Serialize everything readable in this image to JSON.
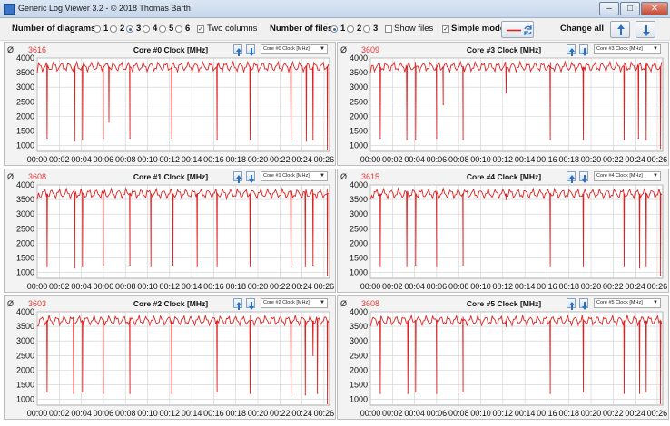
{
  "window": {
    "title": "Generic Log Viewer 3.2 - © 2018 Thomas Barth",
    "icons": [
      "app-icon",
      "minimize-icon",
      "maximize-icon",
      "close-icon"
    ]
  },
  "toolbar": {
    "num_diagrams_label": "Number of diagrams",
    "diagram_options": [
      "1",
      "2",
      "3",
      "4",
      "5",
      "6"
    ],
    "diagram_selected": "3",
    "two_columns_label": "Two columns",
    "two_columns_checked": true,
    "num_files_label": "Number of files",
    "file_options": [
      "1",
      "2",
      "3"
    ],
    "file_selected": "1",
    "show_files_label": "Show files",
    "show_files_checked": false,
    "simple_mode_label": "Simple mode",
    "simple_mode_checked": true,
    "change_all_label": "Change all",
    "line_color": "#e02020",
    "icons": [
      "refresh-icon",
      "arrow-up-icon",
      "arrow-down-icon"
    ]
  },
  "panels": [
    {
      "avg_symbol": "Ø",
      "avg": "3616",
      "title": "Core #0 Clock [MHz]",
      "select": "Core #0 Clock [MHz]"
    },
    {
      "avg_symbol": "Ø",
      "avg": "3609",
      "title": "Core #3 Clock [MHz]",
      "select": "Core #3 Clock [MHz]"
    },
    {
      "avg_symbol": "Ø",
      "avg": "3608",
      "title": "Core #1 Clock [MHz]",
      "select": "Core #1 Clock [MHz]"
    },
    {
      "avg_symbol": "Ø",
      "avg": "3615",
      "title": "Core #4 Clock [MHz]",
      "select": "Core #4 Clock [MHz]"
    },
    {
      "avg_symbol": "Ø",
      "avg": "3603",
      "title": "Core #2 Clock [MHz]",
      "select": "Core #2 Clock [MHz]"
    },
    {
      "avg_symbol": "Ø",
      "avg": "3608",
      "title": "Core #5 Clock [MHz]",
      "select": "Core #5 Clock [MHz]"
    }
  ],
  "chart_data": {
    "type": "line",
    "ylim": [
      800,
      4000
    ],
    "y_ticks": [
      "4000",
      "3500",
      "3000",
      "2500",
      "2000",
      "1500",
      "1000"
    ],
    "x_ticks": [
      "00:00",
      "00:02",
      "00:04",
      "00:06",
      "00:08",
      "00:10",
      "00:12",
      "00:14",
      "00:16",
      "00:18",
      "00:20",
      "00:22",
      "00:24",
      "00:26"
    ],
    "x_range_minutes": [
      0,
      26.5
    ],
    "baseline_mhz": 3700,
    "series_color": "#e02020",
    "series": [
      {
        "dips": [
          [
            0.9,
            1250
          ],
          [
            3.4,
            1150
          ],
          [
            4.1,
            1200
          ],
          [
            6.0,
            1250
          ],
          [
            6.5,
            1800
          ],
          [
            8.4,
            1250
          ],
          [
            12.2,
            1250
          ],
          [
            16.3,
            1200
          ],
          [
            19.3,
            1200
          ],
          [
            23.0,
            1200
          ],
          [
            24.4,
            1150
          ],
          [
            25.0,
            1200
          ],
          [
            26.3,
            850
          ]
        ]
      },
      {
        "dips": [
          [
            0.9,
            1250
          ],
          [
            3.3,
            1200
          ],
          [
            4.1,
            1200
          ],
          [
            6.0,
            1250
          ],
          [
            6.6,
            2400
          ],
          [
            8.4,
            1200
          ],
          [
            12.3,
            2800
          ],
          [
            16.3,
            1200
          ],
          [
            19.3,
            1200
          ],
          [
            23.0,
            1200
          ],
          [
            24.3,
            1250
          ],
          [
            25.0,
            1200
          ],
          [
            26.3,
            900
          ]
        ]
      },
      {
        "dips": [
          [
            0.9,
            1200
          ],
          [
            3.4,
            1150
          ],
          [
            4.1,
            1200
          ],
          [
            6.0,
            1250
          ],
          [
            8.4,
            1250
          ],
          [
            10.3,
            1200
          ],
          [
            12.3,
            1250
          ],
          [
            14.5,
            1200
          ],
          [
            16.3,
            1200
          ],
          [
            19.3,
            1200
          ],
          [
            23.0,
            1200
          ],
          [
            24.3,
            1200
          ],
          [
            25.0,
            1250
          ],
          [
            26.3,
            900
          ]
        ]
      },
      {
        "dips": [
          [
            0.9,
            1200
          ],
          [
            3.3,
            1200
          ],
          [
            4.1,
            1250
          ],
          [
            6.0,
            1200
          ],
          [
            8.4,
            1250
          ],
          [
            12.3,
            3500
          ],
          [
            16.3,
            1200
          ],
          [
            19.3,
            1200
          ],
          [
            23.0,
            1200
          ],
          [
            24.4,
            1150
          ],
          [
            25.0,
            1200
          ],
          [
            26.3,
            900
          ]
        ]
      },
      {
        "dips": [
          [
            0.9,
            1250
          ],
          [
            3.3,
            1200
          ],
          [
            4.1,
            1250
          ],
          [
            6.0,
            1200
          ],
          [
            8.4,
            1200
          ],
          [
            12.2,
            1200
          ],
          [
            16.3,
            1250
          ],
          [
            19.3,
            1200
          ],
          [
            23.0,
            1200
          ],
          [
            24.3,
            1150
          ],
          [
            25.0,
            2500
          ],
          [
            25.4,
            1200
          ],
          [
            26.3,
            850
          ]
        ]
      },
      {
        "dips": [
          [
            0.9,
            1200
          ],
          [
            3.4,
            1200
          ],
          [
            4.1,
            1250
          ],
          [
            6.0,
            1200
          ],
          [
            8.4,
            1250
          ],
          [
            12.3,
            3500
          ],
          [
            16.3,
            1200
          ],
          [
            19.3,
            1250
          ],
          [
            23.0,
            1200
          ],
          [
            24.4,
            1200
          ],
          [
            25.0,
            1250
          ],
          [
            26.3,
            850
          ]
        ]
      }
    ]
  }
}
